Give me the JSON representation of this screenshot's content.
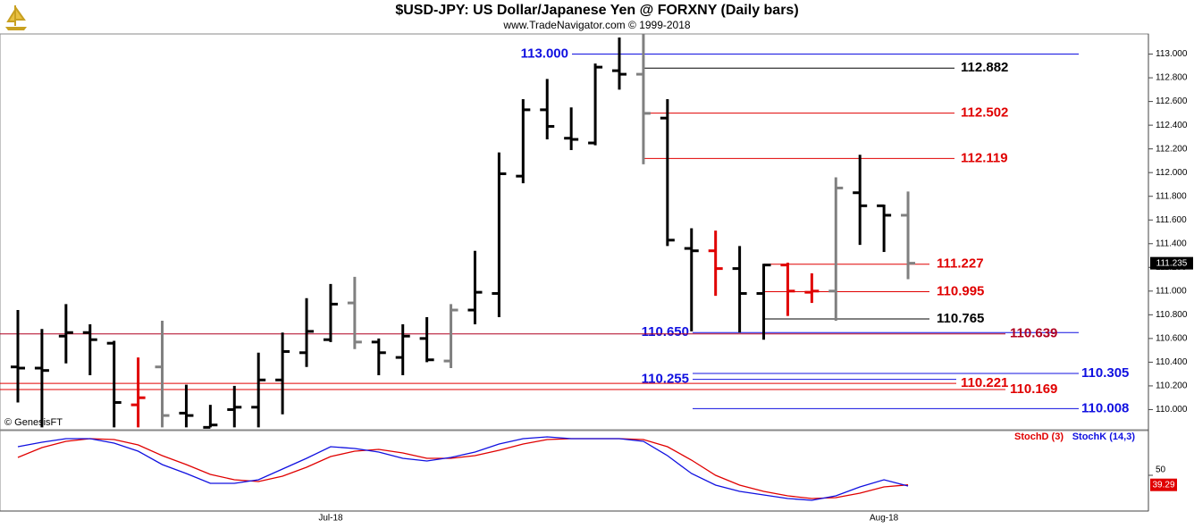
{
  "chart_data": [
    {
      "type": "ohlc",
      "title": "$USD-JPY:  US Dollar/Japanese Yen @ FORXNY  (Daily bars)",
      "subtitle": "www.TradeNavigator.com © 1999-2018",
      "credit": "© GenesisFT",
      "categories": [
        null,
        null,
        null,
        null,
        null,
        null,
        null,
        null,
        null,
        null,
        null,
        null,
        null,
        "Jul-18",
        null,
        null,
        null,
        null,
        null,
        null,
        null,
        null,
        null,
        null,
        null,
        null,
        null,
        null,
        null,
        null,
        null,
        null,
        null,
        null,
        null,
        null,
        "Aug-18",
        null
      ],
      "open": [
        110.36,
        110.35,
        110.62,
        110.65,
        110.56,
        110.04,
        110.36,
        109.97,
        109.85,
        110.0,
        110.02,
        110.25,
        110.48,
        110.59,
        110.9,
        110.57,
        110.44,
        110.6,
        110.41,
        110.84,
        110.98,
        111.97,
        112.53,
        112.29,
        112.25,
        112.86,
        112.83,
        112.46,
        111.36,
        111.34,
        111.19,
        110.98,
        111.22,
        110.99,
        111.0,
        111.83,
        111.72,
        111.64
      ],
      "high": [
        110.84,
        110.68,
        110.89,
        110.72,
        110.58,
        110.44,
        110.75,
        110.21,
        110.04,
        110.2,
        110.48,
        110.65,
        110.94,
        111.06,
        111.12,
        110.6,
        110.72,
        110.78,
        110.89,
        111.34,
        112.17,
        112.62,
        112.79,
        112.55,
        112.92,
        113.14,
        113.17,
        112.62,
        111.53,
        111.51,
        111.38,
        111.23,
        111.24,
        111.15,
        111.96,
        112.15,
        111.73,
        111.84
      ],
      "low": [
        110.06,
        109.85,
        110.39,
        110.29,
        109.85,
        109.85,
        109.85,
        109.85,
        109.85,
        109.85,
        109.85,
        109.96,
        110.36,
        110.57,
        110.51,
        110.29,
        110.29,
        110.4,
        110.35,
        110.72,
        110.78,
        111.91,
        112.28,
        112.19,
        112.23,
        112.7,
        112.07,
        111.38,
        110.66,
        110.96,
        110.65,
        110.59,
        110.79,
        110.9,
        110.75,
        111.39,
        111.33,
        111.1
      ],
      "close": [
        110.35,
        110.33,
        110.65,
        110.59,
        110.06,
        110.1,
        109.95,
        109.95,
        109.87,
        110.02,
        110.25,
        110.49,
        110.66,
        110.89,
        110.57,
        110.48,
        110.62,
        110.42,
        110.84,
        110.99,
        111.99,
        112.53,
        112.39,
        112.28,
        112.89,
        112.83,
        112.5,
        111.43,
        111.34,
        111.19,
        110.98,
        111.22,
        111.0,
        111.0,
        111.87,
        111.72,
        111.64,
        111.235
      ],
      "colors": [
        "#000000",
        "#000000",
        "#000000",
        "#000000",
        "#000000",
        "#e00000",
        "#808080",
        "#000000",
        "#000000",
        "#000000",
        "#000000",
        "#000000",
        "#000000",
        "#000000",
        "#808080",
        "#000000",
        "#000000",
        "#000000",
        "#808080",
        "#000000",
        "#000000",
        "#000000",
        "#000000",
        "#000000",
        "#000000",
        "#000000",
        "#808080",
        "#000000",
        "#000000",
        "#e00000",
        "#000000",
        "#000000",
        "#e00000",
        "#e00000",
        "#808080",
        "#000000",
        "#000000",
        "#808080"
      ],
      "levels": [
        {
          "value": 113,
          "label": "113.000",
          "color": "#1010e0"
        },
        {
          "value": 112.882,
          "color": "#000000"
        },
        {
          "value": 112.502,
          "color": "#e00000"
        },
        {
          "value": 112.119,
          "color": "#e00000"
        },
        {
          "value": 111.227,
          "color": "#e00000"
        },
        {
          "value": 110.995,
          "color": "#e00000"
        },
        {
          "value": 110.765,
          "color": "#000000"
        },
        {
          "value": 110.65,
          "label": "110.650",
          "color": "#1010e0"
        },
        {
          "value": 110.639,
          "color": "#b00020"
        },
        {
          "value": 110.305,
          "color": "#1010e0"
        },
        {
          "value": 110.255,
          "color": "#1010e0"
        },
        {
          "value": 110.221,
          "color": "#e00000"
        },
        {
          "value": 110.169,
          "color": "#e00000"
        },
        {
          "value": 110.008,
          "color": "#1010e0"
        }
      ],
      "ylim": [
        109.83,
        113.17
      ],
      "yticks": [
        {
          "value": 110.0,
          "label": "110.000"
        },
        {
          "value": 110.2,
          "label": "110.200"
        },
        {
          "value": 110.4,
          "label": "110.400"
        },
        {
          "value": 110.6,
          "label": "110.600"
        },
        {
          "value": 110.8,
          "label": "110.800"
        },
        {
          "value": 111.0,
          "label": "111.000"
        },
        {
          "value": 111.2,
          "label": "111.200"
        },
        {
          "value": 111.4,
          "label": "111.400"
        },
        {
          "value": 111.6,
          "label": "111.600"
        },
        {
          "value": 111.8,
          "label": "111.800"
        },
        {
          "value": 112.0,
          "label": "112.000"
        },
        {
          "value": 112.2,
          "label": "112.200"
        },
        {
          "value": 112.4,
          "label": "112.400"
        },
        {
          "value": 112.6,
          "label": "112.600"
        },
        {
          "value": 112.8,
          "label": "112.800"
        },
        {
          "value": 113.0,
          "label": "113.000"
        }
      ]
    },
    {
      "type": "line",
      "series": [
        {
          "name": "StochD (3)",
          "color": "#e00000",
          "values": [
            70,
            81,
            88,
            91,
            90,
            84,
            72,
            62,
            51,
            45,
            43,
            49,
            59,
            71,
            77,
            79,
            75,
            69,
            69,
            72,
            78,
            85,
            90,
            91,
            91,
            91,
            90,
            82,
            67,
            50,
            39,
            32,
            27,
            24,
            25,
            30,
            37,
            39.29
          ]
        },
        {
          "name": "StochK (14,3)",
          "color": "#1010e0",
          "values": [
            82,
            87,
            91,
            91,
            86,
            77,
            62,
            52,
            41,
            41,
            45,
            57,
            69,
            82,
            80,
            76,
            69,
            66,
            70,
            76,
            85,
            91,
            93,
            91,
            91,
            91,
            88,
            72,
            52,
            39,
            32,
            28,
            24,
            22,
            27,
            37,
            45,
            38
          ]
        }
      ],
      "ylim": [
        10,
        100
      ],
      "yticks": [
        50
      ]
    }
  ]
}
